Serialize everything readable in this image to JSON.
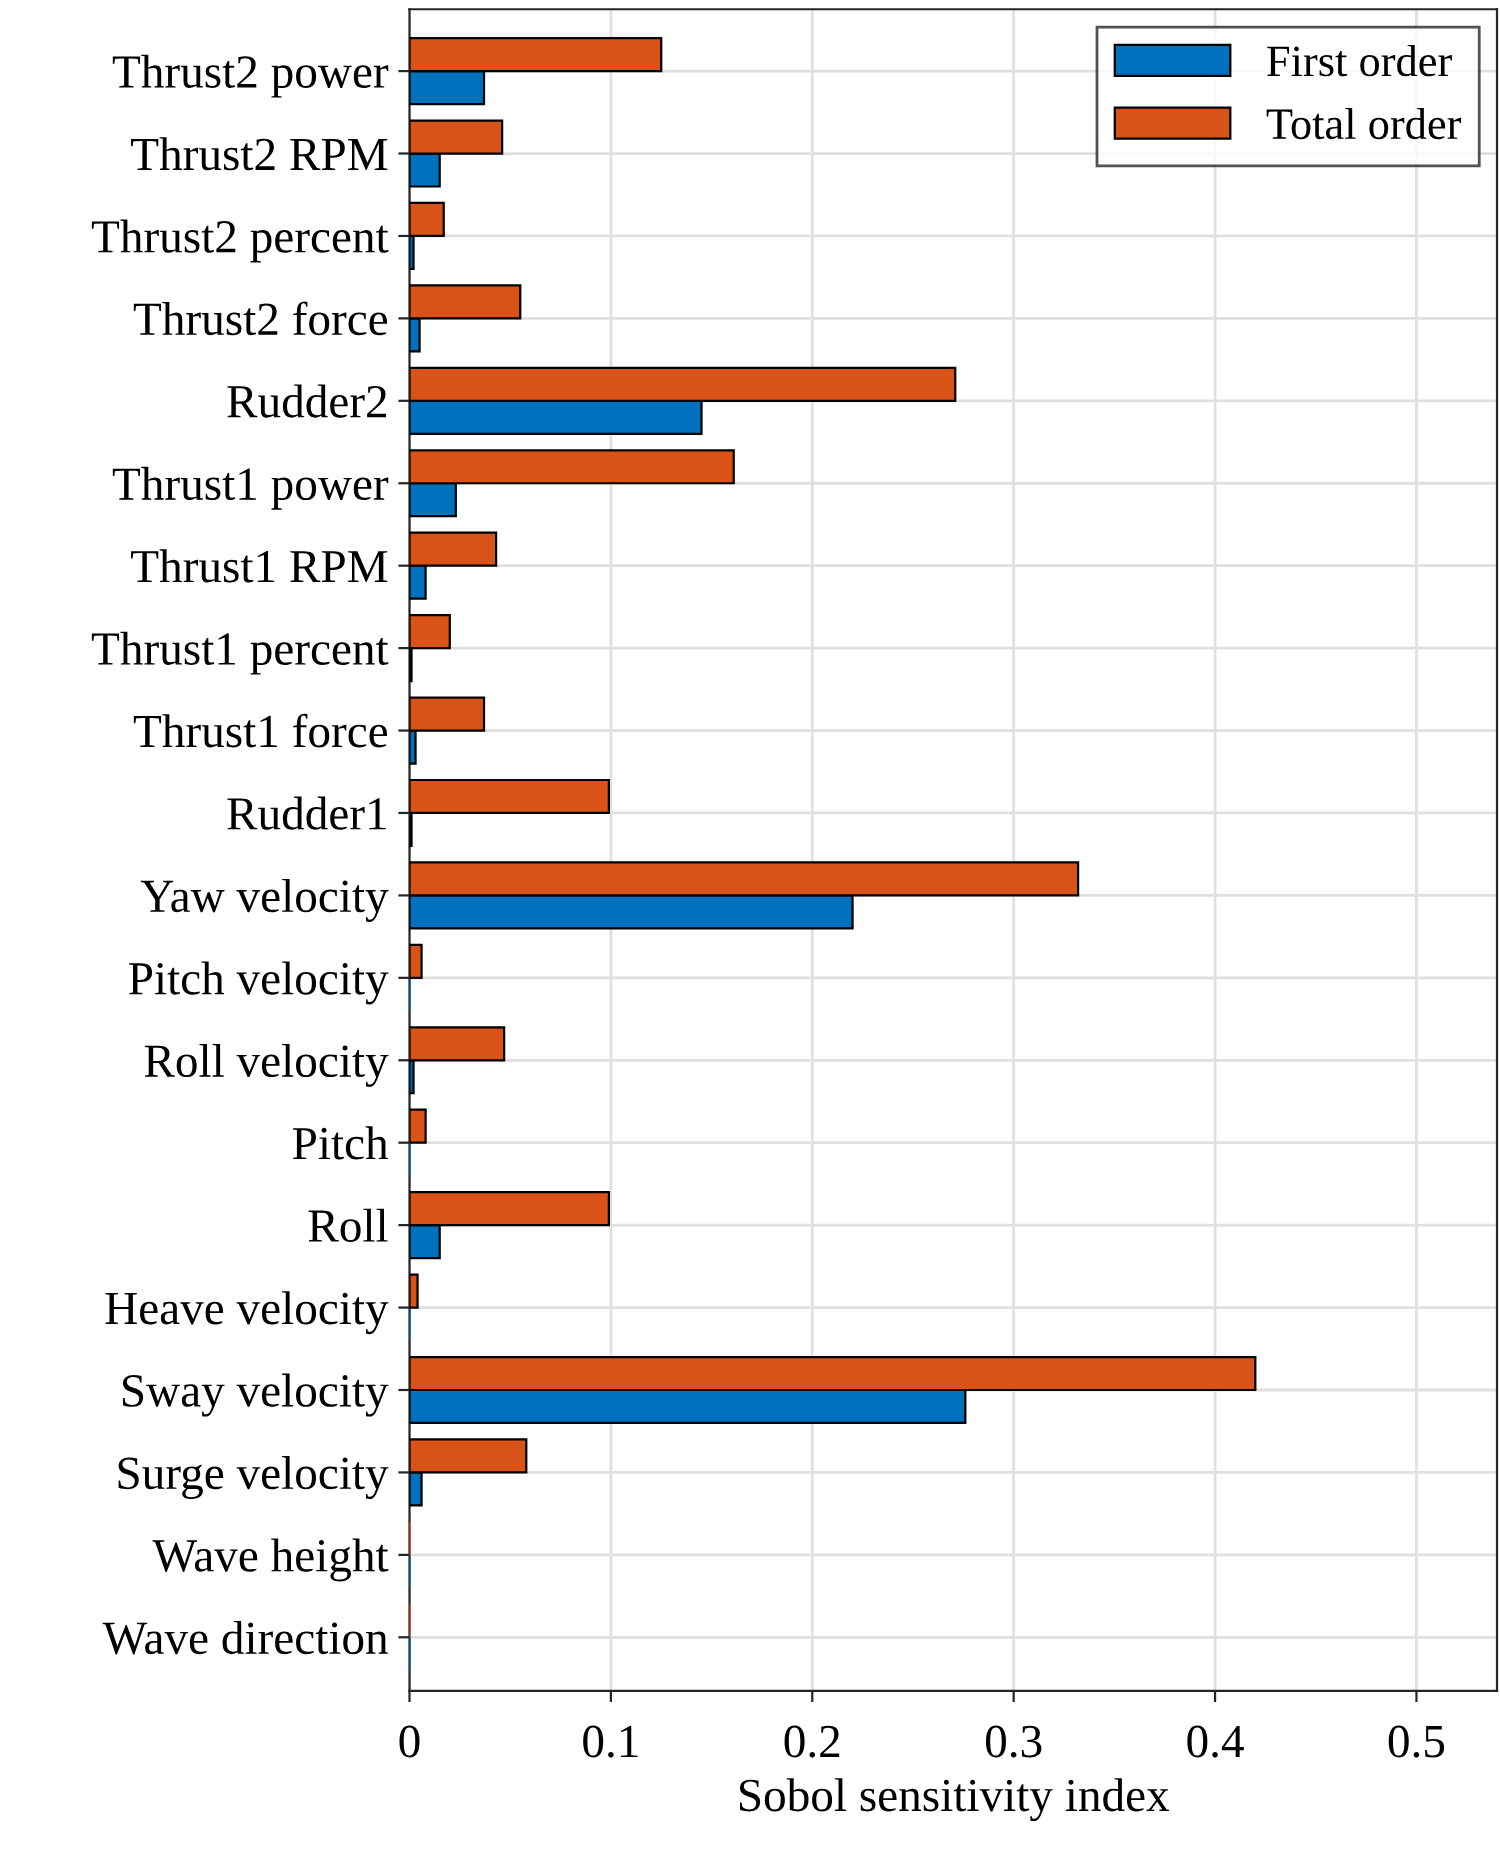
{
  "chart_data": {
    "type": "bar",
    "orientation": "horizontal",
    "xlabel": "Sobol sensitivity index",
    "categories": [
      "Thrust2 power",
      "Thrust2 RPM",
      "Thrust2 percent",
      "Thrust2 force",
      "Rudder2",
      "Thrust1 power",
      "Thrust1 RPM",
      "Thrust1 percent",
      "Thrust1 force",
      "Rudder1",
      "Yaw velocity",
      "Pitch velocity",
      "Roll velocity",
      "Pitch",
      "Roll",
      "Heave velocity",
      "Sway velocity",
      "Surge velocity",
      "Wave height",
      "Wave direction"
    ],
    "series": [
      {
        "name": "First order",
        "color": "#0072bd",
        "values": [
          0.037,
          0.015,
          0.002,
          0.005,
          0.145,
          0.023,
          0.008,
          0.001,
          0.003,
          0.001,
          0.22,
          0,
          0.002,
          0,
          0.015,
          0,
          0.276,
          0.006,
          0,
          0
        ]
      },
      {
        "name": "Total order",
        "color": "#d95319",
        "values": [
          0.125,
          0.046,
          0.017,
          0.055,
          0.271,
          0.161,
          0.043,
          0.02,
          0.037,
          0.099,
          0.332,
          0.006,
          0.047,
          0.008,
          0.099,
          0.004,
          0.42,
          0.058,
          0,
          0
        ]
      }
    ],
    "xlim": [
      0,
      0.54
    ],
    "xticks": [
      0,
      0.1,
      0.2,
      0.3,
      0.4,
      0.5
    ],
    "grid": true,
    "legend": "top right"
  }
}
